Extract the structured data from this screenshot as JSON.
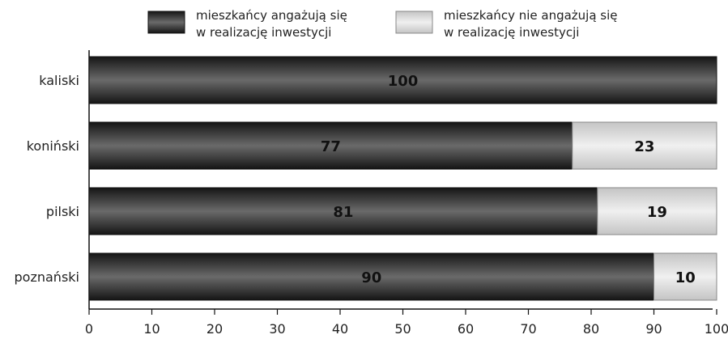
{
  "chart_data": {
    "type": "bar",
    "orientation": "horizontal",
    "stacked": true,
    "categories": [
      "kaliski",
      "koniński",
      "pilski",
      "poznański"
    ],
    "series": [
      {
        "name": "mieszkańcy angażują się w realizację inwestycji",
        "legend_lines": [
          "mieszkańcy angażują się",
          "w realizację inwestycji"
        ],
        "color": "#2e2e2e",
        "values": [
          100,
          77,
          81,
          90
        ],
        "labels": [
          "100",
          "77",
          "81",
          "90"
        ]
      },
      {
        "name": "mieszkańcy nie angażują się w realizację inwestycji",
        "legend_lines": [
          "mieszkańcy nie angażują się",
          "w realizację inwestycji"
        ],
        "color": "#dcdcdc",
        "values": [
          0,
          23,
          19,
          10
        ],
        "labels": [
          "",
          "23",
          "19",
          "10"
        ]
      }
    ],
    "xlim": [
      0,
      100
    ],
    "xticks": [
      "0",
      "10",
      "20",
      "30",
      "40",
      "50",
      "60",
      "70",
      "80",
      "90",
      "100"
    ],
    "legend_position": "top",
    "grid": false
  }
}
